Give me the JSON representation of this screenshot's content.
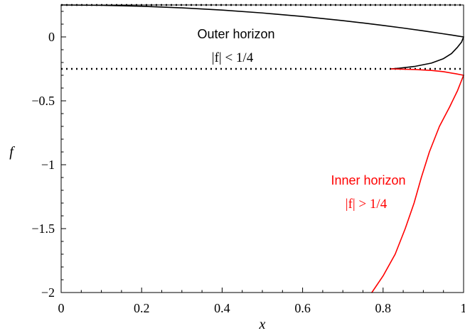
{
  "chart_data": {
    "type": "line",
    "xlabel": "x",
    "ylabel": "f",
    "xlim": [
      0,
      1
    ],
    "ylim": [
      -2,
      0.25
    ],
    "xticks": [
      {
        "value": 0,
        "label": "0"
      },
      {
        "value": 0.2,
        "label": "0.2"
      },
      {
        "value": 0.4,
        "label": "0.4"
      },
      {
        "value": 0.6,
        "label": "0.6"
      },
      {
        "value": 0.8,
        "label": "0.8"
      },
      {
        "value": 1,
        "label": "1"
      }
    ],
    "yticks": [
      {
        "value": 0,
        "label": "0"
      },
      {
        "value": -0.5,
        "label": "−0.5"
      },
      {
        "value": -1,
        "label": "−1"
      },
      {
        "value": -1.5,
        "label": "−1.5"
      },
      {
        "value": -2,
        "label": "−2"
      }
    ],
    "reference_lines": [
      {
        "y": 0.25,
        "style": "dotted",
        "color": "#000000"
      },
      {
        "y": -0.25,
        "style": "dotted",
        "color": "#000000"
      }
    ],
    "series": [
      {
        "color": "#000000",
        "points": [
          [
            0,
            0.25
          ],
          [
            0.1,
            0.2475
          ],
          [
            0.2,
            0.24
          ],
          [
            0.3,
            0.2275
          ],
          [
            0.4,
            0.21
          ],
          [
            0.5,
            0.1875
          ],
          [
            0.6,
            0.16
          ],
          [
            0.7,
            0.1275
          ],
          [
            0.75,
            0.1094
          ],
          [
            0.8,
            0.09
          ],
          [
            0.85,
            0.0694
          ],
          [
            0.9,
            0.0475
          ],
          [
            0.95,
            0.0244
          ],
          [
            0.97,
            0.0148
          ],
          [
            0.985,
            0.0074
          ],
          [
            1.0,
            0.0
          ]
        ]
      },
      {
        "color": "#000000",
        "points": [
          [
            1.0,
            0.0
          ],
          [
            0.995,
            -0.04
          ],
          [
            0.985,
            -0.08
          ],
          [
            0.97,
            -0.13
          ],
          [
            0.95,
            -0.17
          ],
          [
            0.92,
            -0.205
          ],
          [
            0.88,
            -0.23
          ],
          [
            0.84,
            -0.245
          ],
          [
            0.82,
            -0.25
          ]
        ]
      },
      {
        "color": "#ff0000",
        "points": [
          [
            0.82,
            -0.25
          ],
          [
            0.88,
            -0.255
          ],
          [
            0.92,
            -0.262
          ],
          [
            0.95,
            -0.272
          ],
          [
            0.98,
            -0.288
          ],
          [
            1.0,
            -0.3
          ]
        ]
      },
      {
        "color": "#ff0000",
        "points": [
          [
            1.0,
            -0.3
          ],
          [
            0.985,
            -0.42
          ],
          [
            0.965,
            -0.55
          ],
          [
            0.94,
            -0.7
          ],
          [
            0.915,
            -0.9
          ],
          [
            0.895,
            -1.1
          ],
          [
            0.877,
            -1.3
          ],
          [
            0.855,
            -1.5
          ],
          [
            0.83,
            -1.7
          ],
          [
            0.8,
            -1.87
          ],
          [
            0.772,
            -2.0
          ]
        ]
      }
    ],
    "annotations": [
      {
        "title": "Outer horizon",
        "math": "|f| < 1/4",
        "color": "#000000"
      },
      {
        "title": "Inner horizon",
        "math": "|f| > 1/4",
        "color": "#ff0000"
      }
    ]
  }
}
